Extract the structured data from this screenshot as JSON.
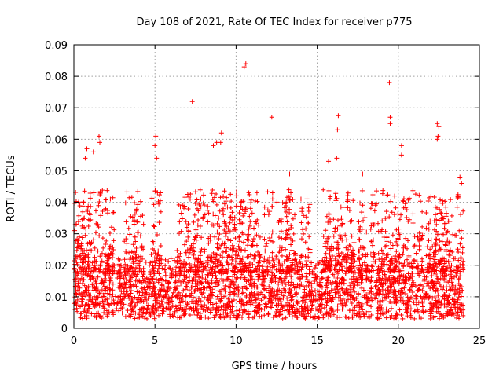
{
  "chart_data": {
    "type": "scatter",
    "title": "Day 108 of 2021, Rate Of TEC Index for receiver p775",
    "xlabel": "GPS time / hours",
    "ylabel": "ROTI / TECUs",
    "xlim": [
      0,
      25
    ],
    "ylim": [
      0,
      0.09
    ],
    "xticks": [
      "0",
      "5",
      "10",
      "15",
      "20",
      "25"
    ],
    "yticks": [
      "0",
      "0.01",
      "0.02",
      "0.03",
      "0.04",
      "0.05",
      "0.06",
      "0.07",
      "0.08",
      "0.09"
    ],
    "grid": true,
    "marker": "+",
    "marker_color": "#ff0000",
    "series": [
      {
        "name": "ROTI",
        "notable_points": [
          {
            "x": 0.8,
            "y": 0.057
          },
          {
            "x": 0.7,
            "y": 0.054
          },
          {
            "x": 1.2,
            "y": 0.056
          },
          {
            "x": 1.55,
            "y": 0.061
          },
          {
            "x": 1.6,
            "y": 0.059
          },
          {
            "x": 5.05,
            "y": 0.061
          },
          {
            "x": 5.0,
            "y": 0.058
          },
          {
            "x": 5.1,
            "y": 0.054
          },
          {
            "x": 7.3,
            "y": 0.072
          },
          {
            "x": 8.6,
            "y": 0.058
          },
          {
            "x": 8.8,
            "y": 0.059
          },
          {
            "x": 9.1,
            "y": 0.062
          },
          {
            "x": 9.05,
            "y": 0.059
          },
          {
            "x": 10.5,
            "y": 0.083
          },
          {
            "x": 10.6,
            "y": 0.084
          },
          {
            "x": 12.2,
            "y": 0.067
          },
          {
            "x": 13.3,
            "y": 0.049
          },
          {
            "x": 14.0,
            "y": 0.041
          },
          {
            "x": 16.3,
            "y": 0.0675
          },
          {
            "x": 16.25,
            "y": 0.063
          },
          {
            "x": 16.2,
            "y": 0.054
          },
          {
            "x": 15.7,
            "y": 0.053
          },
          {
            "x": 17.8,
            "y": 0.049
          },
          {
            "x": 19.45,
            "y": 0.078
          },
          {
            "x": 19.5,
            "y": 0.067
          },
          {
            "x": 19.5,
            "y": 0.065
          },
          {
            "x": 20.2,
            "y": 0.058
          },
          {
            "x": 20.2,
            "y": 0.055
          },
          {
            "x": 22.4,
            "y": 0.065
          },
          {
            "x": 22.5,
            "y": 0.064
          },
          {
            "x": 22.45,
            "y": 0.061
          },
          {
            "x": 22.4,
            "y": 0.06
          },
          {
            "x": 23.8,
            "y": 0.048
          },
          {
            "x": 23.9,
            "y": 0.046
          }
        ],
        "density": {
          "x_range": [
            0,
            24
          ],
          "typical_band": [
            0.004,
            0.022
          ],
          "bulk_center": 0.011
        }
      }
    ]
  }
}
